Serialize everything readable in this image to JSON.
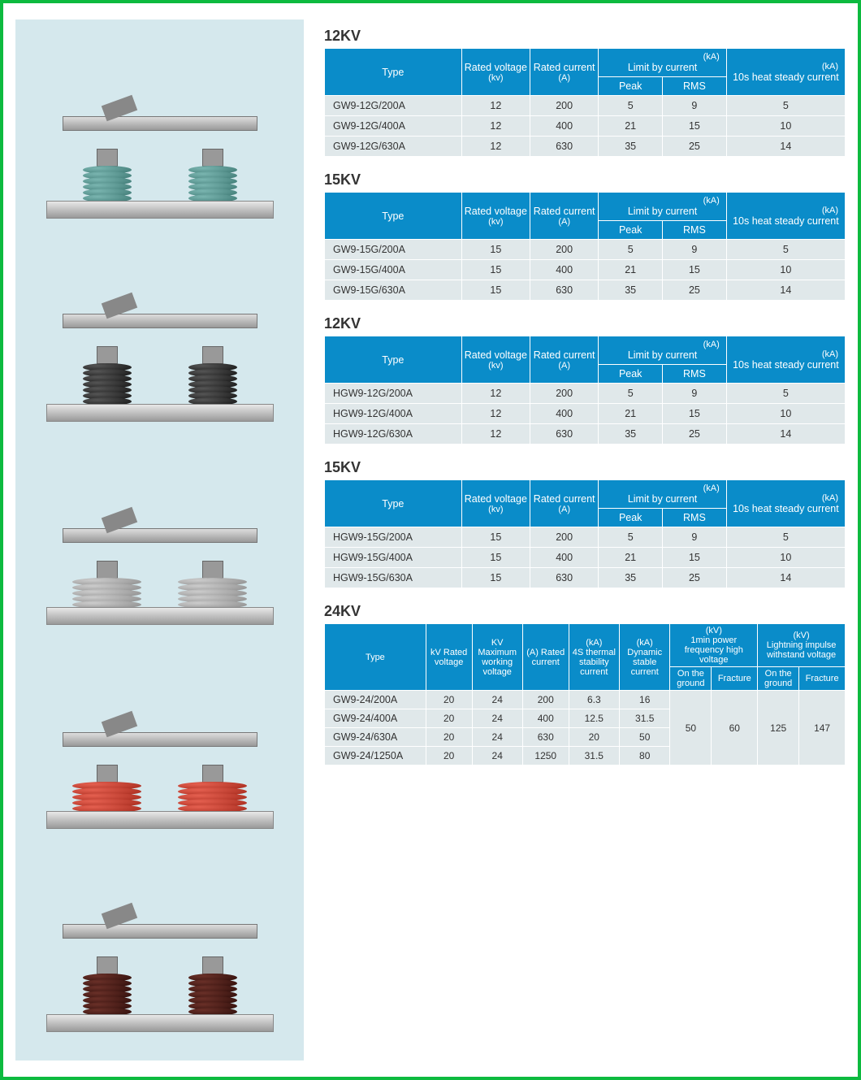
{
  "products": [
    {
      "color": "teal",
      "sheds": 6,
      "wide": false
    },
    {
      "color": "black",
      "sheds": 7,
      "wide": false
    },
    {
      "color": "grey",
      "sheds": 5,
      "wide": true
    },
    {
      "color": "red",
      "sheds": 5,
      "wide": true
    },
    {
      "color": "brown",
      "sheds": 7,
      "wide": false
    }
  ],
  "header_std": {
    "type": "Type",
    "rated_voltage": "Rated voltage",
    "rated_voltage_unit": "(kv)",
    "rated_current": "Rated current",
    "rated_current_unit": "(A)",
    "limit_unit": "(kA)",
    "limit": "Limit by current",
    "peak": "Peak",
    "rms": "RMS",
    "heat_unit": "(kA)",
    "heat": "10s heat steady current"
  },
  "header_24": {
    "type": "Type",
    "kv_rated": "kV Rated voltage",
    "kv_max": "KV Maximum working voltage",
    "a_rated": "(A) Rated current",
    "thermal_unit": "(kA)",
    "thermal": "4S thermal stability current",
    "dynamic_unit": "(kA)",
    "dynamic": "Dynamic stable current",
    "power_unit": "(kV)",
    "power": "1min power frequency high voltage",
    "lightning_unit": "(kV)",
    "lightning": "Lightning impulse withstand voltage",
    "on_ground": "On the ground",
    "fracture": "Fracture"
  },
  "sections": [
    {
      "title": "12KV",
      "rows": [
        {
          "type": "GW9-12G/200A",
          "v": "12",
          "a": "200",
          "peak": "5",
          "rms": "9",
          "heat": "5"
        },
        {
          "type": "GW9-12G/400A",
          "v": "12",
          "a": "400",
          "peak": "21",
          "rms": "15",
          "heat": "10"
        },
        {
          "type": "GW9-12G/630A",
          "v": "12",
          "a": "630",
          "peak": "35",
          "rms": "25",
          "heat": "14"
        }
      ]
    },
    {
      "title": "15KV",
      "rows": [
        {
          "type": "GW9-15G/200A",
          "v": "15",
          "a": "200",
          "peak": "5",
          "rms": "9",
          "heat": "5"
        },
        {
          "type": "GW9-15G/400A",
          "v": "15",
          "a": "400",
          "peak": "21",
          "rms": "15",
          "heat": "10"
        },
        {
          "type": "GW9-15G/630A",
          "v": "15",
          "a": "630",
          "peak": "35",
          "rms": "25",
          "heat": "14"
        }
      ]
    },
    {
      "title": "12KV",
      "rows": [
        {
          "type": "HGW9-12G/200A",
          "v": "12",
          "a": "200",
          "peak": "5",
          "rms": "9",
          "heat": "5"
        },
        {
          "type": "HGW9-12G/400A",
          "v": "12",
          "a": "400",
          "peak": "21",
          "rms": "15",
          "heat": "10"
        },
        {
          "type": "HGW9-12G/630A",
          "v": "12",
          "a": "630",
          "peak": "35",
          "rms": "25",
          "heat": "14"
        }
      ]
    },
    {
      "title": "15KV",
      "rows": [
        {
          "type": "HGW9-15G/200A",
          "v": "15",
          "a": "200",
          "peak": "5",
          "rms": "9",
          "heat": "5"
        },
        {
          "type": "HGW9-15G/400A",
          "v": "15",
          "a": "400",
          "peak": "21",
          "rms": "15",
          "heat": "10"
        },
        {
          "type": "HGW9-15G/630A",
          "v": "15",
          "a": "630",
          "peak": "35",
          "rms": "25",
          "heat": "14"
        }
      ]
    }
  ],
  "section24": {
    "title": "24KV",
    "rows": [
      {
        "type": "GW9-24/200A",
        "kv": "20",
        "kvm": "24",
        "a": "200",
        "th": "6.3",
        "dyn": "16"
      },
      {
        "type": "GW9-24/400A",
        "kv": "20",
        "kvm": "24",
        "a": "400",
        "th": "12.5",
        "dyn": "31.5"
      },
      {
        "type": "GW9-24/630A",
        "kv": "20",
        "kvm": "24",
        "a": "630",
        "th": "20",
        "dyn": "50"
      },
      {
        "type": "GW9-24/1250A",
        "kv": "20",
        "kvm": "24",
        "a": "1250",
        "th": "31.5",
        "dyn": "80"
      }
    ],
    "pg": "50",
    "pf": "60",
    "lg": "125",
    "lf": "147"
  },
  "colors": {
    "header_bg": "#0a8cc9",
    "row_bg": "#e0e8ea",
    "border": "#0dba3f",
    "left_bg": "#d5e8ed"
  }
}
